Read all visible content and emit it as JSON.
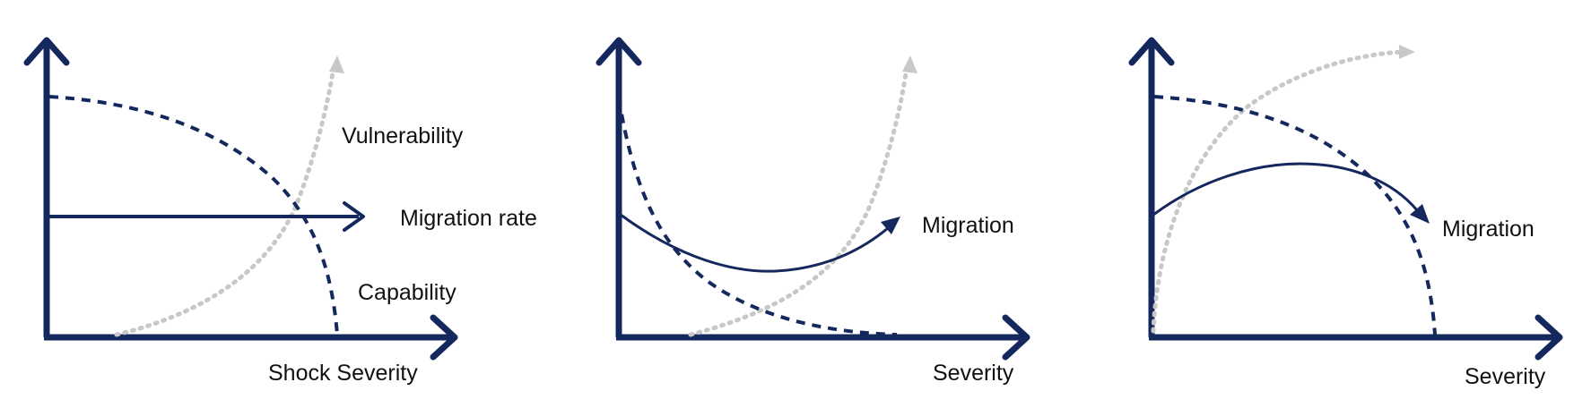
{
  "colors": {
    "navy": "#14285e",
    "grey": "#c8c8c8",
    "background": "#ffffff"
  },
  "panels": [
    {
      "x_label": "Shock Severity",
      "labels": {
        "vulnerability": "Vulnerability",
        "migration_rate": "Migration rate",
        "capability": "Capability"
      },
      "curves": {
        "vulnerability": "dotted grey, rising steeply",
        "capability": "dashed navy, falling steeply",
        "migration_rate": "solid navy, flat"
      }
    },
    {
      "x_label": "Severity",
      "labels": {
        "migration": "Migration"
      },
      "curves": {
        "vulnerability": "dotted grey, rising steeply",
        "capability": "dashed navy, decaying quickly",
        "migration": "solid navy, U-shaped"
      }
    },
    {
      "x_label": "Severity",
      "labels": {
        "migration": "Migration"
      },
      "curves": {
        "vulnerability": "dotted grey, rising then saturating",
        "capability": "dashed navy, falling steeply",
        "migration": "solid navy, inverted-U"
      }
    }
  ]
}
